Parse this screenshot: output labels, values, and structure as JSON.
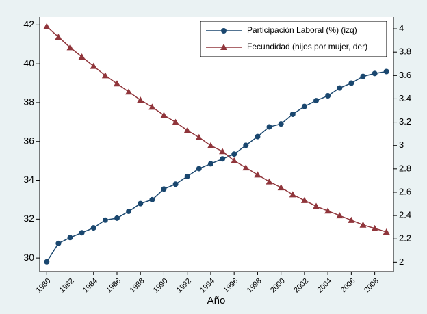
{
  "chart_data": {
    "type": "line",
    "x_label": "Año",
    "x": [
      1980,
      1981,
      1982,
      1983,
      1984,
      1985,
      1986,
      1987,
      1988,
      1989,
      1990,
      1991,
      1992,
      1993,
      1994,
      1995,
      1996,
      1997,
      1998,
      1999,
      2000,
      2001,
      2002,
      2003,
      2004,
      2005,
      2006,
      2007,
      2008,
      2009
    ],
    "xlim": [
      1979.4,
      2009.6
    ],
    "xticks": [
      1980,
      1982,
      1984,
      1986,
      1988,
      1990,
      1992,
      1994,
      1996,
      1998,
      2000,
      2002,
      2004,
      2006,
      2008
    ],
    "ylim": [
      29.3,
      42.4
    ],
    "yticks": [
      30,
      32,
      34,
      36,
      38,
      40,
      42
    ],
    "y2lim": [
      1.92,
      4.1
    ],
    "y2ticks": [
      2,
      2.2,
      2.4,
      2.6,
      2.8,
      3,
      3.2,
      3.4,
      3.6,
      3.8,
      4
    ],
    "grid": false,
    "legend": "top-right",
    "series": [
      {
        "name": "Participación Laboral (%) (izq)",
        "color": "#1a476f",
        "marker": "circle",
        "values": [
          29.8,
          30.75,
          31.05,
          31.3,
          31.55,
          31.95,
          32.05,
          32.4,
          32.8,
          33.0,
          33.55,
          33.8,
          34.2,
          34.6,
          34.85,
          35.1,
          35.35,
          35.8,
          36.25,
          36.75,
          36.9,
          37.4,
          37.8,
          38.1,
          38.35,
          38.75,
          39.0,
          39.35,
          39.5,
          39.6
        ]
      },
      {
        "name": "Fecundidad (hijos por mujer, der)",
        "color": "#90353b",
        "marker": "triangle",
        "axis": "y2",
        "values": [
          4.02,
          3.93,
          3.84,
          3.76,
          3.68,
          3.6,
          3.53,
          3.46,
          3.39,
          3.33,
          3.26,
          3.2,
          3.13,
          3.07,
          3.0,
          2.95,
          2.87,
          2.81,
          2.75,
          2.69,
          2.64,
          2.58,
          2.53,
          2.48,
          2.44,
          2.4,
          2.36,
          2.32,
          2.29,
          2.26
        ]
      }
    ]
  }
}
